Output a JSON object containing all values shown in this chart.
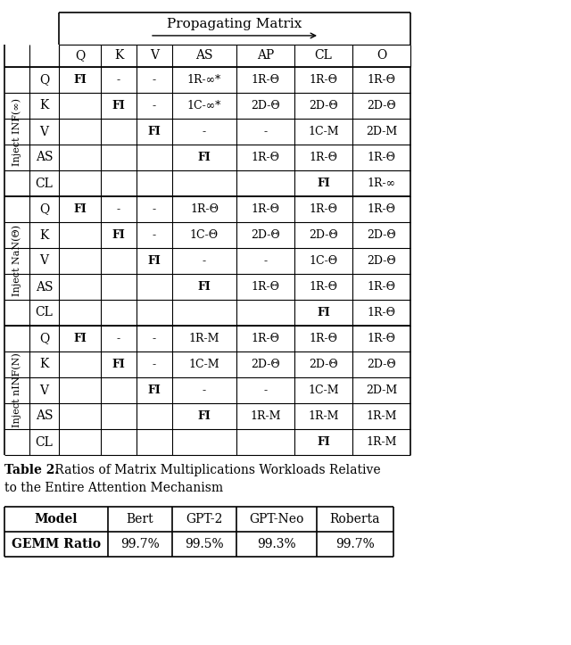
{
  "title_top": "Propagating Matrix",
  "col_headers": [
    "Q",
    "K",
    "V",
    "AS",
    "AP",
    "CL",
    "O"
  ],
  "row_groups": [
    {
      "group_label": "Inject INF(∞)",
      "rows": [
        {
          "inject": "Q",
          "cells": [
            "FI",
            "-",
            "-",
            "1R-∞*",
            "1R-Θ",
            "1R-Θ",
            "1R-Θ"
          ]
        },
        {
          "inject": "K",
          "cells": [
            "",
            "FI",
            "-",
            "1C-∞*",
            "2D-Θ",
            "2D-Θ",
            "2D-Θ"
          ]
        },
        {
          "inject": "V",
          "cells": [
            "",
            "",
            "FI",
            "-",
            "-",
            "1C-M",
            "2D-M"
          ]
        },
        {
          "inject": "AS",
          "cells": [
            "",
            "",
            "",
            "FI",
            "1R-Θ",
            "1R-Θ",
            "1R-Θ"
          ]
        },
        {
          "inject": "CL",
          "cells": [
            "",
            "",
            "",
            "",
            "",
            "FI",
            "1R-∞"
          ]
        }
      ]
    },
    {
      "group_label": "Inject NaN(Θ)",
      "rows": [
        {
          "inject": "Q",
          "cells": [
            "FI",
            "-",
            "-",
            "1R-Θ",
            "1R-Θ",
            "1R-Θ",
            "1R-Θ"
          ]
        },
        {
          "inject": "K",
          "cells": [
            "",
            "FI",
            "-",
            "1C-Θ",
            "2D-Θ",
            "2D-Θ",
            "2D-Θ"
          ]
        },
        {
          "inject": "V",
          "cells": [
            "",
            "",
            "FI",
            "-",
            "-",
            "1C-Θ",
            "2D-Θ"
          ]
        },
        {
          "inject": "AS",
          "cells": [
            "",
            "",
            "",
            "FI",
            "1R-Θ",
            "1R-Θ",
            "1R-Θ"
          ]
        },
        {
          "inject": "CL",
          "cells": [
            "",
            "",
            "",
            "",
            "",
            "FI",
            "1R-Θ"
          ]
        }
      ]
    },
    {
      "group_label": "Inject nINF(N)",
      "rows": [
        {
          "inject": "Q",
          "cells": [
            "FI",
            "-",
            "-",
            "1R-M",
            "1R-Θ",
            "1R-Θ",
            "1R-Θ"
          ]
        },
        {
          "inject": "K",
          "cells": [
            "",
            "FI",
            "-",
            "1C-M",
            "2D-Θ",
            "2D-Θ",
            "2D-Θ"
          ]
        },
        {
          "inject": "V",
          "cells": [
            "",
            "",
            "FI",
            "-",
            "-",
            "1C-M",
            "2D-M"
          ]
        },
        {
          "inject": "AS",
          "cells": [
            "",
            "",
            "",
            "FI",
            "1R-M",
            "1R-M",
            "1R-M"
          ]
        },
        {
          "inject": "CL",
          "cells": [
            "",
            "",
            "",
            "",
            "",
            "FI",
            "1R-M"
          ]
        }
      ]
    }
  ],
  "table2_caption_bold": "Table 2.",
  "table2_caption_normal": " Ratios of Matrix Multiplications Workloads Relative",
  "table2_caption_line2": "to the Entire Attention Mechanism",
  "table2_headers": [
    "Model",
    "Bert",
    "GPT-2",
    "GPT-Neo",
    "Roberta"
  ],
  "table2_row": [
    "GEMM Ratio",
    "99.7%",
    "99.5%",
    "99.3%",
    "99.7%"
  ],
  "bg_color": "#ffffff",
  "line_color": "#000000",
  "font_size_header": 10,
  "font_size_cell": 9,
  "font_size_caption": 10,
  "font_size_group": 8
}
